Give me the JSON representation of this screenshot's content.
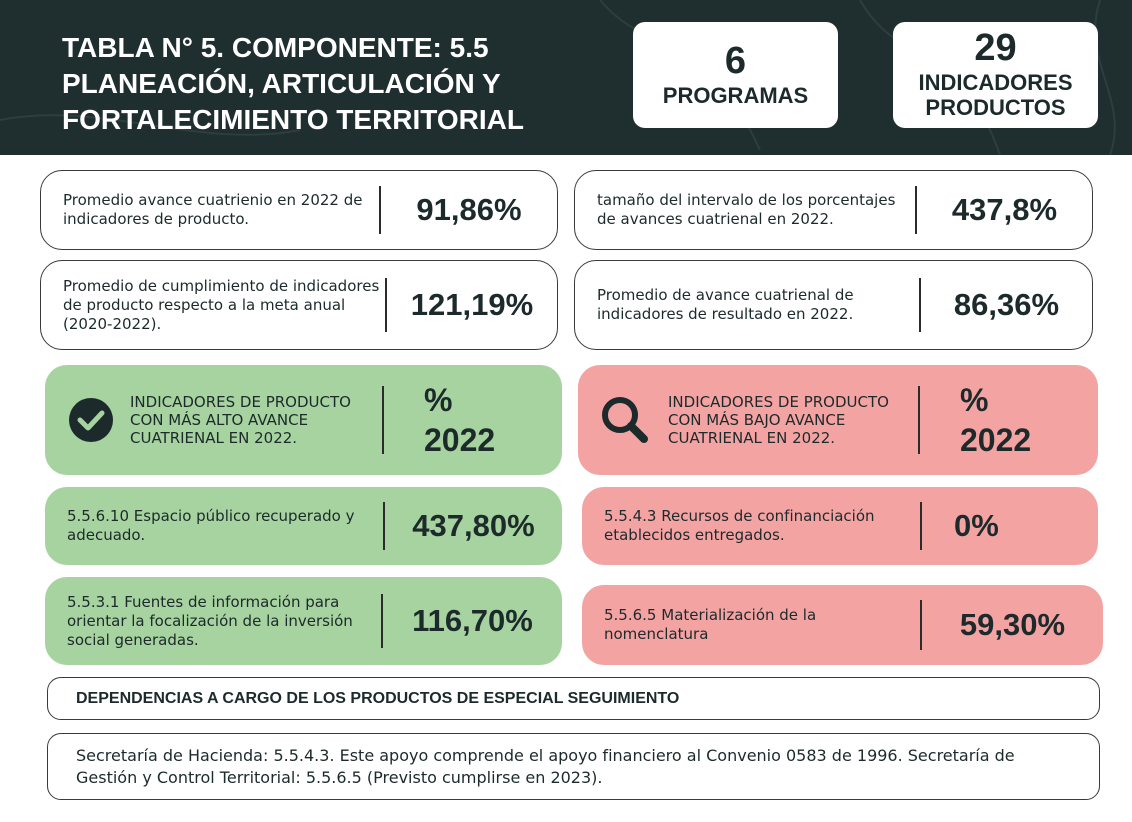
{
  "header": {
    "title": "TABLA N° 5. COMPONENTE: 5.5 PLANEACIÓN, ARTICULACIÓN Y FORTALECIMIENTO TERRITORIAL",
    "stats": [
      {
        "value": "6",
        "label": "PROGRAMAS"
      },
      {
        "value": "29",
        "label": "INDICADORES PRODUCTOS"
      }
    ]
  },
  "summary": [
    {
      "label": "Promedio avance cuatrienio en 2022 de indicadores de producto.",
      "value": "91,86%"
    },
    {
      "label": "tamaño del intervalo de los porcentajes de avances cuatrienal en 2022.",
      "value": "437,8%"
    },
    {
      "label": "Promedio de cumplimiento de indicadores de producto respecto a la meta anual (2020-2022).",
      "value": "121,19%"
    },
    {
      "label": "Promedio de avance cuatrienal de indicadores de resultado en 2022.",
      "value": "86,36%"
    }
  ],
  "highest": {
    "title": "INDICADORES DE PRODUCTO CON MÁS ALTO AVANCE CUATRIENAL EN 2022.",
    "column": "% 2022",
    "items": [
      {
        "label": "5.5.6.10 Espacio público recuperado y adecuado.",
        "value": "437,80%"
      },
      {
        "label": "5.5.3.1 Fuentes de información para orientar la focalización de la inversión social generadas.",
        "value": "116,70%"
      }
    ]
  },
  "lowest": {
    "title": "INDICADORES DE PRODUCTO CON MÁS BAJO AVANCE CUATRIENAL EN 2022.",
    "column": "% 2022",
    "items": [
      {
        "label": "5.5.4.3 Recursos de confinanciación etablecidos entregados.",
        "value": "0%"
      },
      {
        "label": "5.5.6.5 Materialización de la nomenclatura",
        "value": "59,30%"
      }
    ]
  },
  "dependencies": {
    "title": "DEPENDENCIAS A CARGO DE LOS PRODUCTOS DE ESPECIAL SEGUIMIENTO",
    "text": "Secretaría de Hacienda: 5.5.4.3. Este apoyo comprende el apoyo financiero al Convenio 0583 de 1996. Secretaría de Gestión y Control Territorial: 5.5.6.5 (Previsto cumplirse en 2023)."
  }
}
